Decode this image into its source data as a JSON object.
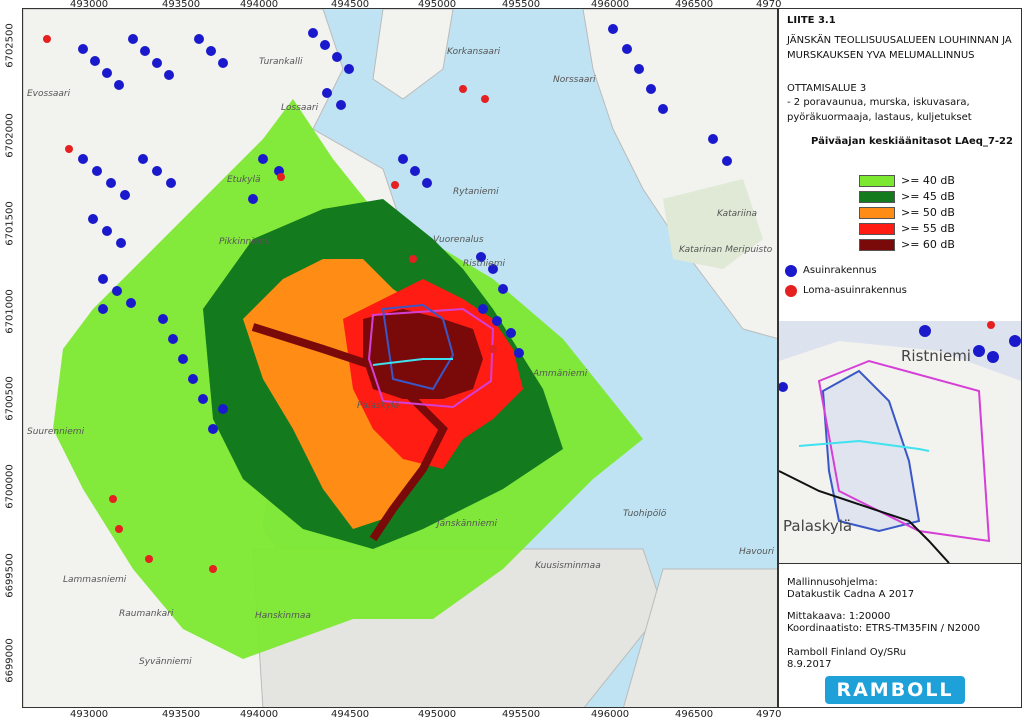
{
  "axes": {
    "x_ticks": [
      "493000",
      "493500",
      "494000",
      "494500",
      "495000",
      "495500",
      "496000",
      "496500",
      "4970"
    ],
    "y_ticks": [
      "6702500",
      "6702000",
      "6701500",
      "6701000",
      "6700500",
      "6700000",
      "6699500",
      "6699000"
    ]
  },
  "place_labels": [
    "Turankalli",
    "Evossaari",
    "Etukylä",
    "Pikkinniemi",
    "Ristniemi",
    "Vuorenalus",
    "Palaskylä",
    "Suurenniemi",
    "Hanskinmaa",
    "Jänskänniemi",
    "Lammasniemi",
    "Raumankari",
    "Katariina",
    "Katarinan Meripuisto",
    "Norssaari",
    "Rytaniemi",
    "Ammäniemi",
    "Tuohipölö",
    "Havouri",
    "Kuusisminmaa",
    "Syvänniemi",
    "Lossaari",
    "Korkansaari"
  ],
  "legend": {
    "title": "LIITE 3.1",
    "subtitle": "JÄNSKÄN TEOLLISUUSALUEEN LOUHINNAN JA MURSKAUKSEN YVA MELUMALLINNUS",
    "area": "OTTAMISALUE 3",
    "area_desc": "- 2 poravaunua, murska, iskuvasara, pyöräkuormaaja, lastaus, kuljetukset",
    "heading": "Päiväajan keskiäänitasot LAeq_7-22",
    "classes": [
      {
        "label": ">= 40 dB",
        "color": "#7ce830"
      },
      {
        "label": ">= 45 dB",
        "color": "#137a1d"
      },
      {
        "label": ">= 50 dB",
        "color": "#ff8c14"
      },
      {
        "label": ">= 55 dB",
        "color": "#ff1c12"
      },
      {
        "label": ">= 60 dB",
        "color": "#7a0a0a"
      }
    ],
    "points": [
      {
        "label": "Asuinrakennus",
        "color": "#1a1acc"
      },
      {
        "label": "Loma-asuinrakennus",
        "color": "#e52020"
      }
    ]
  },
  "inset": {
    "labels": [
      "Ristniemi",
      "Palaskylä"
    ]
  },
  "info": {
    "software_label": "Mallinnusohjelma:",
    "software": "Datakustik Cadna A 2017",
    "scale": "Mittakaava: 1:20000",
    "crs": "Koordinaatisto: ETRS-TM35FIN / N2000",
    "company": "Ramboll Finland Oy/SRu",
    "date": "8.9.2017",
    "logo": "RAMBOLL"
  }
}
